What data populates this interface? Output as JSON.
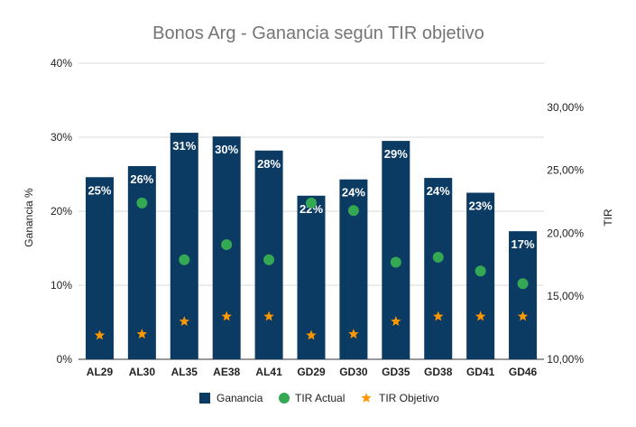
{
  "chart_data": {
    "type": "bar",
    "title": "Bonos Arg - Ganancia según TIR objetivo",
    "ylabel": "Ganancia %",
    "y2label": "TIR",
    "categories": [
      "AL29",
      "AL30",
      "AL35",
      "AE38",
      "AL41",
      "GD29",
      "GD30",
      "GD35",
      "GD38",
      "GD41",
      "GD46"
    ],
    "ylim": [
      0,
      40
    ],
    "yticks": [
      "0%",
      "10%",
      "20%",
      "30%",
      "40%"
    ],
    "y2lim": [
      10,
      33.5
    ],
    "y2ticks": [
      "10,00%",
      "15,00%",
      "20,00%",
      "25,00%",
      "30,00%"
    ],
    "grid": true,
    "legend_position": "bottom",
    "series": [
      {
        "name": "Ganancia",
        "kind": "bar",
        "axis": "left",
        "color": "#0b3a63",
        "values": [
          24.6,
          26.1,
          30.6,
          30.1,
          28.2,
          22.1,
          24.3,
          29.5,
          24.5,
          22.5,
          17.3
        ],
        "labels": [
          "25%",
          "26%",
          "31%",
          "30%",
          "28%",
          "22%",
          "24%",
          "29%",
          "24%",
          "23%",
          "17%"
        ]
      },
      {
        "name": "TIR Actual",
        "kind": "point",
        "axis": "right",
        "color": "#34a853",
        "values": [
          null,
          22.4,
          17.9,
          19.1,
          17.9,
          22.4,
          21.8,
          17.7,
          18.1,
          17.0,
          16.0
        ]
      },
      {
        "name": "TIR Objetivo",
        "kind": "star",
        "axis": "right",
        "color": "#ff9800",
        "values": [
          11.9,
          12.0,
          13.0,
          13.4,
          13.4,
          11.9,
          12.0,
          13.0,
          13.4,
          13.4,
          13.4
        ]
      }
    ]
  }
}
